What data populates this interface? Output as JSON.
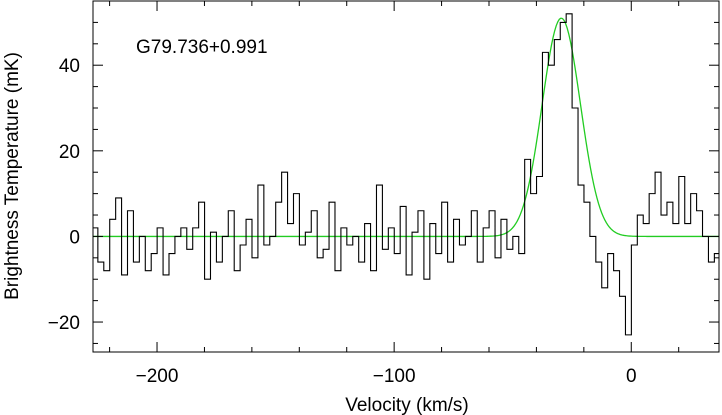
{
  "chart_data": {
    "type": "line",
    "title": "",
    "annotation": "G79.736+0.991",
    "xlabel": "Velocity (km/s)",
    "ylabel": "Brightness Temperature (mK)",
    "xlim": [
      -227,
      37
    ],
    "ylim": [
      -27,
      55
    ],
    "xticks": [
      -200,
      -100,
      0
    ],
    "xtick_labels": [
      "−200",
      "−100",
      "0"
    ],
    "yticks": [
      -20,
      0,
      20,
      40
    ],
    "ytick_labels": [
      "−20",
      "0",
      "20",
      "40"
    ],
    "grid": false,
    "legend": "none",
    "colors": {
      "spectrum": "#000000",
      "fit": "#22cc22"
    },
    "series": [
      {
        "style": "histogram-step",
        "x": [
          -226.2,
          -223.7,
          -221.2,
          -218.7,
          -216.2,
          -213.7,
          -211.2,
          -208.7,
          -206.2,
          -203.7,
          -201.2,
          -198.7,
          -196.2,
          -193.7,
          -191.2,
          -188.7,
          -186.2,
          -183.7,
          -181.2,
          -178.7,
          -176.2,
          -173.7,
          -171.2,
          -168.7,
          -166.2,
          -163.7,
          -161.2,
          -158.7,
          -156.2,
          -153.7,
          -151.2,
          -148.7,
          -146.2,
          -143.7,
          -141.2,
          -138.7,
          -136.2,
          -133.7,
          -131.2,
          -128.7,
          -126.2,
          -123.7,
          -121.2,
          -118.7,
          -116.2,
          -113.7,
          -111.2,
          -108.7,
          -106.2,
          -103.7,
          -101.2,
          -98.7,
          -96.2,
          -93.7,
          -91.2,
          -88.7,
          -86.2,
          -83.7,
          -81.2,
          -78.7,
          -76.2,
          -73.7,
          -71.2,
          -68.7,
          -66.2,
          -63.7,
          -61.2,
          -58.7,
          -56.2,
          -53.7,
          -51.2,
          -48.7,
          -46.2,
          -43.7,
          -41.2,
          -38.7,
          -36.2,
          -33.7,
          -31.2,
          -28.7,
          -26.2,
          -23.7,
          -21.2,
          -18.7,
          -16.2,
          -13.7,
          -11.2,
          -8.7,
          -6.2,
          -3.7,
          -1.2,
          1.3,
          3.8,
          6.3,
          8.8,
          11.3,
          13.8,
          16.3,
          18.8,
          21.3,
          23.8,
          26.3,
          28.8,
          31.3,
          33.8,
          36.3
        ],
        "y": [
          2,
          -6,
          -8,
          4,
          9,
          -9,
          6,
          -6,
          0,
          -8,
          -4,
          2,
          -9,
          -4,
          0,
          2,
          -3,
          2,
          8,
          -10,
          1,
          -6,
          0,
          6,
          -8,
          -2,
          4,
          -5,
          12,
          -2,
          0,
          8,
          15,
          3,
          10,
          -2,
          1,
          6,
          -5,
          -3,
          8,
          -8,
          2,
          -2,
          0,
          -6,
          3,
          -8,
          12,
          -3,
          2,
          -4,
          7,
          -9,
          1,
          6,
          -10,
          3,
          -4,
          8,
          -6,
          4,
          -2,
          0,
          6,
          -6,
          2,
          6,
          -5,
          4,
          -3,
          0,
          -4,
          18,
          10,
          14,
          43,
          40,
          46,
          50,
          52,
          30,
          12,
          8,
          0,
          -6,
          -12,
          -4,
          -8,
          -14,
          -23,
          -2,
          5,
          3,
          10,
          15,
          5,
          8,
          3,
          14,
          3,
          10,
          6,
          0,
          -6,
          -4
        ]
      },
      {
        "style": "gaussian-fit",
        "amplitude": 51,
        "center": -29.5,
        "fwhm": 19
      }
    ]
  }
}
